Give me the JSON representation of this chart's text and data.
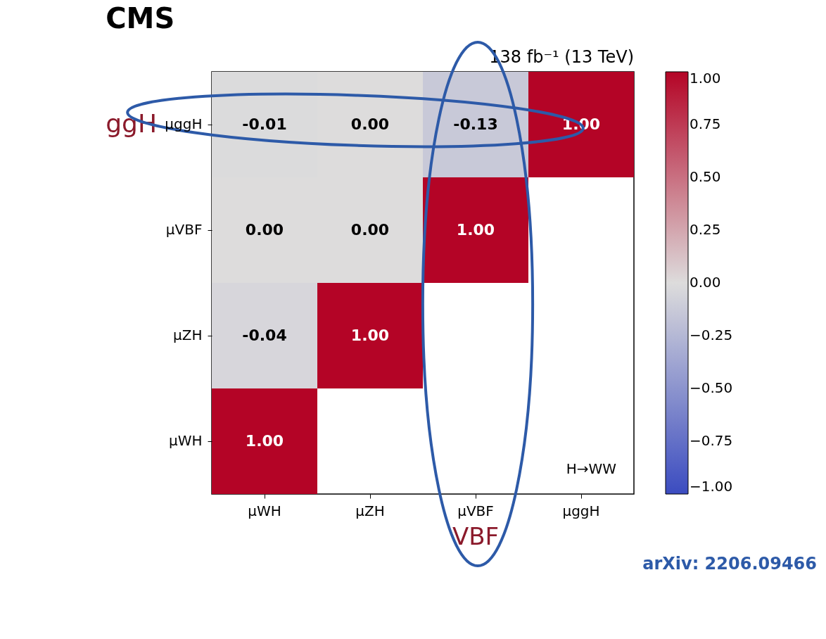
{
  "chart_data": {
    "type": "heatmap",
    "title": "CMS",
    "subtitle": "138 fb⁻¹ (13 TeV)",
    "categories": [
      "μWH",
      "μZH",
      "μVBF",
      "μggH"
    ],
    "y_categories": [
      "μggH",
      "μVBF",
      "μZH",
      "μWH"
    ],
    "cells": [
      [
        -0.01,
        0.0,
        -0.13,
        1.0
      ],
      [
        0.0,
        0.0,
        1.0,
        null
      ],
      [
        -0.04,
        1.0,
        null,
        null
      ],
      [
        1.0,
        null,
        null,
        null
      ]
    ],
    "cell_labels": [
      [
        "-0.01",
        "0.00",
        "-0.13",
        "1.00"
      ],
      [
        "0.00",
        "0.00",
        "1.00",
        null
      ],
      [
        "-0.04",
        "1.00",
        null,
        null
      ],
      [
        "1.00",
        null,
        null,
        null
      ]
    ],
    "clim": [
      -1,
      1
    ],
    "cticks": [
      {
        "value": -1,
        "label": "−1.00"
      },
      {
        "value": -0.75,
        "label": "−0.75"
      },
      {
        "value": -0.5,
        "label": "−0.50"
      },
      {
        "value": -0.25,
        "label": "−0.25"
      },
      {
        "value": 0,
        "label": "0.00"
      },
      {
        "value": 0.25,
        "label": "0.25"
      },
      {
        "value": 0.5,
        "label": "0.50"
      },
      {
        "value": 0.75,
        "label": "0.75"
      },
      {
        "value": 1,
        "label": "1.00"
      }
    ],
    "annotations": [
      "H→WW",
      "ggH",
      "VBF",
      "arXiv: 2206.09466"
    ]
  }
}
